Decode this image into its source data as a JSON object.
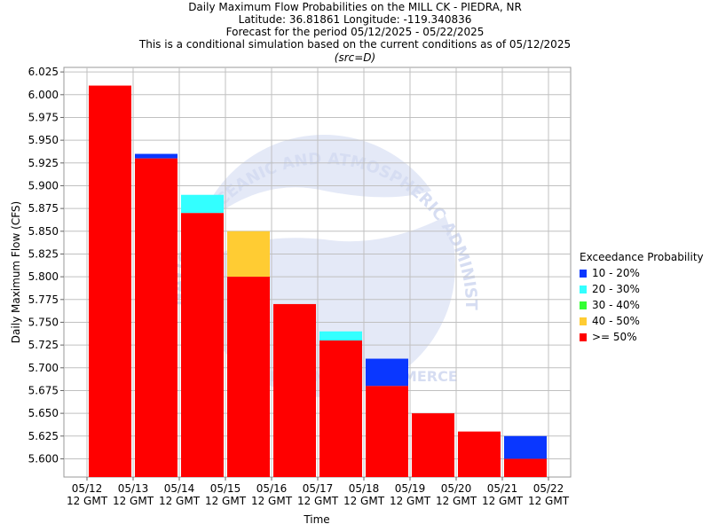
{
  "titles": [
    "Daily Maximum Flow Probabilities on the MILL CK - PIEDRA, NR",
    "Latitude: 36.81861 Longitude: -119.340836",
    "Forecast for the period 05/12/2025 - 05/22/2025",
    "This is a conditional simulation based on the current conditions as of 05/12/2025"
  ],
  "src_label": "(src=D)",
  "watermark": {
    "logo_text": "NOAA",
    "ring_text": "NATIONAL OCEANIC AND ATMOSPHERIC ADMINISTRATION",
    "bottom_text": "U.S. DEPARTMENT OF COMMERCE"
  },
  "colors": {
    "band_10_20": "#0a37ff",
    "band_20_30": "#33ffff",
    "band_30_40": "#33ff33",
    "band_40_50": "#ffcc33",
    "band_ge_50": "#ff0000"
  },
  "chart_data": {
    "type": "bar",
    "stacked_ranges": true,
    "title": "Daily Maximum Flow Probabilities on the MILL CK - PIEDRA, NR",
    "xlabel": "Time",
    "ylabel": "Daily Maximum Flow (CFS)",
    "ylim": [
      5.58,
      6.03
    ],
    "yticks": [
      "5.600",
      "5.625",
      "5.650",
      "5.675",
      "5.700",
      "5.725",
      "5.750",
      "5.775",
      "5.800",
      "5.825",
      "5.850",
      "5.875",
      "5.900",
      "5.925",
      "5.950",
      "5.975",
      "6.000",
      "6.025"
    ],
    "x_ticks": [
      [
        "05/12",
        "12 GMT"
      ],
      [
        "05/13",
        "12 GMT"
      ],
      [
        "05/14",
        "12 GMT"
      ],
      [
        "05/15",
        "12 GMT"
      ],
      [
        "05/16",
        "12 GMT"
      ],
      [
        "05/17",
        "12 GMT"
      ],
      [
        "05/18",
        "12 GMT"
      ],
      [
        "05/19",
        "12 GMT"
      ],
      [
        "05/20",
        "12 GMT"
      ],
      [
        "05/21",
        "12 GMT"
      ],
      [
        "05/22",
        "12 GMT"
      ]
    ],
    "grid": true,
    "legend_title": "Exceedance Probability",
    "legend_position": "right",
    "series": [
      {
        "name": "10 - 20%",
        "color_key": "band_10_20",
        "values": [
          null,
          5.935,
          null,
          null,
          null,
          null,
          5.71,
          null,
          null,
          5.625
        ]
      },
      {
        "name": "20 - 30%",
        "color_key": "band_20_30",
        "values": [
          null,
          null,
          5.89,
          null,
          null,
          5.74,
          null,
          null,
          null,
          null
        ]
      },
      {
        "name": "30 - 40%",
        "color_key": "band_30_40",
        "values": [
          null,
          null,
          null,
          null,
          null,
          null,
          null,
          null,
          null,
          null
        ]
      },
      {
        "name": "40 - 50%",
        "color_key": "band_40_50",
        "values": [
          null,
          null,
          null,
          5.85,
          null,
          null,
          null,
          null,
          null,
          null
        ]
      },
      {
        "name": ">= 50%",
        "color_key": "band_ge_50",
        "values": [
          6.01,
          5.93,
          5.87,
          5.8,
          5.77,
          5.73,
          5.68,
          5.65,
          5.63,
          5.6
        ]
      }
    ]
  }
}
